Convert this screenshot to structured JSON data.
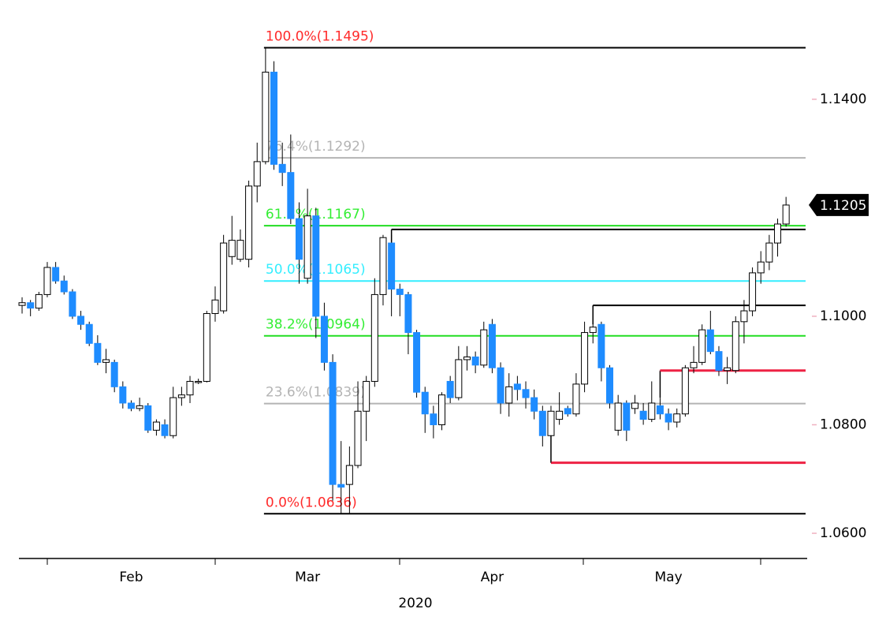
{
  "chart_data": {
    "type": "candlestick",
    "x_label": "2020",
    "categories": [
      null,
      null,
      null,
      null,
      null,
      null,
      null,
      null,
      null,
      null,
      null,
      null,
      null,
      "Feb",
      null,
      null,
      null,
      null,
      null,
      null,
      null,
      null,
      null,
      null,
      null,
      null,
      null,
      null,
      null,
      null,
      null,
      null,
      null,
      null,
      "Mar",
      null,
      null,
      null,
      null,
      null,
      null,
      null,
      null,
      null,
      null,
      null,
      null,
      null,
      null,
      null,
      null,
      null,
      null,
      null,
      null,
      null,
      "Apr",
      null,
      null,
      null,
      null,
      null,
      null,
      null,
      null,
      null,
      null,
      null,
      null,
      null,
      null,
      null,
      null,
      null,
      null,
      null,
      null,
      "May",
      null,
      null,
      null,
      null,
      null,
      null,
      null,
      null,
      null,
      null,
      null,
      null,
      null,
      null
    ],
    "open": [
      1.102,
      1.1025,
      1.1015,
      1.104,
      1.109,
      1.1065,
      1.1045,
      1.1,
      1.0985,
      1.095,
      1.0915,
      1.0915,
      1.087,
      1.084,
      1.083,
      1.0835,
      1.079,
      1.08,
      1.078,
      1.085,
      1.0855,
      1.088,
      1.088,
      1.1005,
      1.101,
      1.111,
      1.1105,
      1.1105,
      1.124,
      1.1285,
      1.145,
      1.128,
      1.1265,
      1.118,
      1.107,
      1.1185,
      1.1,
      1.0915,
      1.069,
      1.069,
      1.0725,
      1.0825,
      1.088,
      1.104,
      1.1135,
      1.105,
      1.104,
      1.097,
      1.086,
      1.082,
      1.08,
      1.088,
      1.085,
      1.092,
      1.0925,
      1.091,
      1.0985,
      1.0905,
      1.084,
      1.0875,
      1.0865,
      1.085,
      1.0825,
      1.078,
      1.081,
      1.083,
      1.082,
      1.0875,
      1.097,
      1.0985,
      1.0905,
      1.079,
      1.084,
      1.083,
      1.0825,
      1.081,
      1.0835,
      1.082,
      1.0805,
      1.082,
      1.0905,
      1.0915,
      1.0975,
      1.0935,
      1.09,
      1.09,
      1.099,
      1.101,
      1.108,
      1.11,
      1.1135,
      1.117
    ],
    "high": [
      1.1035,
      1.103,
      1.1045,
      1.11,
      1.11,
      1.1075,
      1.105,
      1.101,
      1.099,
      1.0965,
      1.094,
      1.092,
      1.088,
      1.0845,
      1.085,
      1.084,
      1.081,
      1.081,
      1.087,
      1.087,
      1.089,
      1.0885,
      1.101,
      1.1055,
      1.115,
      1.1185,
      1.116,
      1.125,
      1.132,
      1.1495,
      1.147,
      1.132,
      1.1335,
      1.121,
      1.1235,
      1.12,
      1.1025,
      1.093,
      1.077,
      1.076,
      1.088,
      1.089,
      1.107,
      1.115,
      1.115,
      1.106,
      1.1045,
      1.0975,
      1.087,
      1.0835,
      1.086,
      1.089,
      1.0945,
      1.0945,
      1.0935,
      1.099,
      1.0995,
      1.0915,
      1.0895,
      1.089,
      1.088,
      1.0865,
      1.0835,
      1.0835,
      1.086,
      1.0835,
      1.0895,
      1.099,
      1.102,
      1.099,
      1.091,
      1.0855,
      1.0845,
      1.0855,
      1.084,
      1.088,
      1.085,
      1.083,
      1.083,
      1.091,
      1.0945,
      1.0985,
      1.101,
      1.0945,
      1.0925,
      1.1,
      1.103,
      1.109,
      1.112,
      1.115,
      1.118,
      1.122
    ],
    "low": [
      1.1005,
      1.1,
      1.101,
      1.1035,
      1.106,
      1.104,
      1.0995,
      1.0975,
      1.0945,
      1.091,
      1.0895,
      1.086,
      1.083,
      1.0825,
      1.0825,
      1.0785,
      1.078,
      1.0775,
      1.0775,
      1.0835,
      1.084,
      1.0875,
      1.0878,
      1.099,
      1.1005,
      1.1095,
      1.11,
      1.109,
      1.121,
      1.128,
      1.127,
      1.124,
      1.117,
      1.106,
      1.106,
      1.096,
      1.09,
      1.066,
      1.0636,
      1.0636,
      1.072,
      1.077,
      1.087,
      1.102,
      1.1,
      1.1,
      1.093,
      1.085,
      1.0785,
      1.0775,
      1.079,
      1.084,
      1.0845,
      1.09,
      1.0895,
      1.0905,
      1.0895,
      1.082,
      1.0815,
      1.0845,
      1.083,
      1.081,
      1.076,
      1.073,
      1.08,
      1.0815,
      1.0815,
      1.086,
      1.095,
      1.088,
      1.083,
      1.078,
      1.077,
      1.082,
      1.08,
      1.0805,
      1.081,
      1.079,
      1.0795,
      1.0815,
      1.0895,
      1.091,
      1.093,
      1.089,
      1.0875,
      1.0895,
      1.095,
      1.1,
      1.106,
      1.1085,
      1.111,
      1.1165
    ],
    "close": [
      1.1025,
      1.1015,
      1.104,
      1.109,
      1.1065,
      1.1045,
      1.1,
      1.0985,
      1.095,
      1.0915,
      1.092,
      1.087,
      1.084,
      1.083,
      1.0835,
      1.079,
      1.0805,
      1.078,
      1.085,
      1.0855,
      1.088,
      1.088,
      1.1005,
      1.103,
      1.1135,
      1.114,
      1.114,
      1.124,
      1.1285,
      1.145,
      1.128,
      1.1265,
      1.118,
      1.1105,
      1.1185,
      1.1,
      1.0915,
      1.069,
      1.0685,
      1.0725,
      1.0825,
      1.088,
      1.104,
      1.1145,
      1.105,
      1.104,
      1.097,
      1.086,
      1.082,
      1.08,
      1.0855,
      1.085,
      1.092,
      1.0925,
      1.091,
      1.0975,
      1.0905,
      1.084,
      1.087,
      1.0865,
      1.085,
      1.0825,
      1.078,
      1.0825,
      1.0825,
      1.082,
      1.0875,
      1.097,
      1.098,
      1.0905,
      1.084,
      1.084,
      1.079,
      1.084,
      1.081,
      1.084,
      1.082,
      1.0805,
      1.082,
      1.0905,
      1.0915,
      1.0975,
      1.0935,
      1.09,
      1.0905,
      1.099,
      1.101,
      1.108,
      1.11,
      1.1135,
      1.117,
      1.1205
    ],
    "up_color": "#ffffff",
    "down_color": "#1e8cff",
    "ylim": [
      1.0555,
      1.158
    ],
    "yticks": [
      {
        "value": 1.14,
        "label": "1.1400"
      },
      {
        "value": 1.1,
        "label": "1.1000"
      },
      {
        "value": 1.08,
        "label": "1.0800"
      },
      {
        "value": 1.06,
        "label": "1.0600"
      }
    ],
    "last_price": {
      "value": 1.1205,
      "label": "1.1205"
    },
    "fib_levels": [
      {
        "value": 1.1495,
        "label": "100.0%(1.1495)",
        "color": "#ff2a2a",
        "line_color": "#000000",
        "from": 29
      },
      {
        "value": 1.1292,
        "label": "76.4%(1.1292)",
        "color": "#b4b4b4",
        "line_color": "#b4b4b4",
        "from": 29
      },
      {
        "value": 1.1167,
        "label": "61.8%(1.1167)",
        "color": "#33ee33",
        "line_color": "#22dd22",
        "from": 29
      },
      {
        "value": 1.1065,
        "label": "50.0%(1.1065)",
        "color": "#33eeff",
        "line_color": "#33eeff",
        "from": 29
      },
      {
        "value": 1.0964,
        "label": "38.2%(1.0964)",
        "color": "#33ee33",
        "line_color": "#22dd22",
        "from": 29
      },
      {
        "value": 1.0839,
        "label": "23.6%(1.0839)",
        "color": "#b4b4b4",
        "line_color": "#b4b4b4",
        "from": 29
      },
      {
        "value": 1.0636,
        "label": "0.0%(1.0636)",
        "color": "#ff2a2a",
        "line_color": "#000000",
        "from": 29
      }
    ],
    "levels": [
      {
        "value": 1.116,
        "color": "#000000",
        "from": 44,
        "anchor": 1.11
      },
      {
        "value": 1.102,
        "color": "#000000",
        "from": 68,
        "anchor": 1.0985
      },
      {
        "value": 1.09,
        "color": "#ee2244",
        "from": 76,
        "anchor": 1.085
      },
      {
        "value": 1.073,
        "color": "#ee2244",
        "from": 63,
        "anchor": 1.078
      }
    ]
  }
}
